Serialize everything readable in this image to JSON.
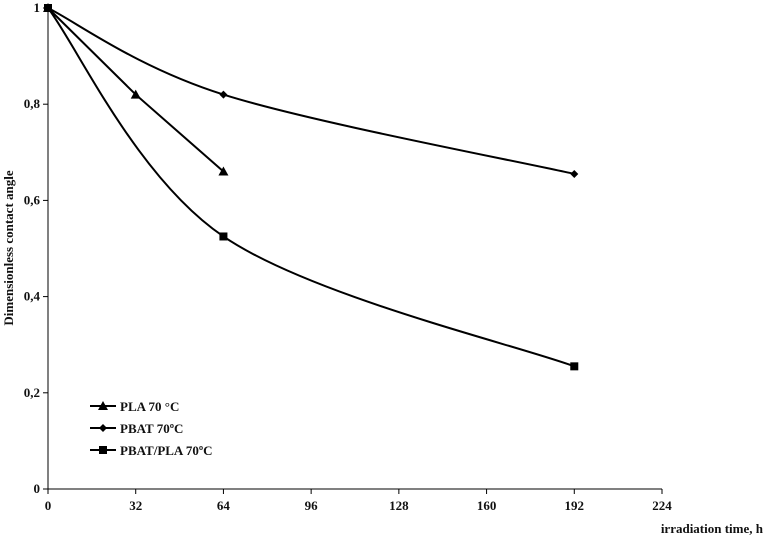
{
  "chart_data": {
    "type": "line",
    "xlabel": "irradiation time, h",
    "ylabel": "Dimensionless contact angle",
    "x_ticks": [
      "0",
      "32",
      "64",
      "96",
      "128",
      "160",
      "192",
      "224"
    ],
    "y_ticks": [
      "0",
      "0,2",
      "0,4",
      "0,6",
      "0,8",
      "1"
    ],
    "xlim": [
      0,
      224
    ],
    "ylim": [
      0,
      1
    ],
    "grid": false,
    "legend_position": "bottom-left",
    "series": [
      {
        "name": "PLA 70 °C",
        "marker": "triangle",
        "smooth": false,
        "x": [
          0,
          32,
          64
        ],
        "y": [
          1.0,
          0.82,
          0.66
        ]
      },
      {
        "name": "PBAT 70ºC",
        "marker": "diamond",
        "smooth": true,
        "x": [
          0,
          64,
          192
        ],
        "y": [
          1.0,
          0.82,
          0.655
        ]
      },
      {
        "name": "PBAT/PLA 70ºC",
        "marker": "square",
        "smooth": true,
        "x": [
          0,
          64,
          192
        ],
        "y": [
          1.0,
          0.525,
          0.255
        ]
      }
    ]
  },
  "colors": {
    "line": "#000000",
    "axis": "#000000",
    "text": "#111111"
  }
}
